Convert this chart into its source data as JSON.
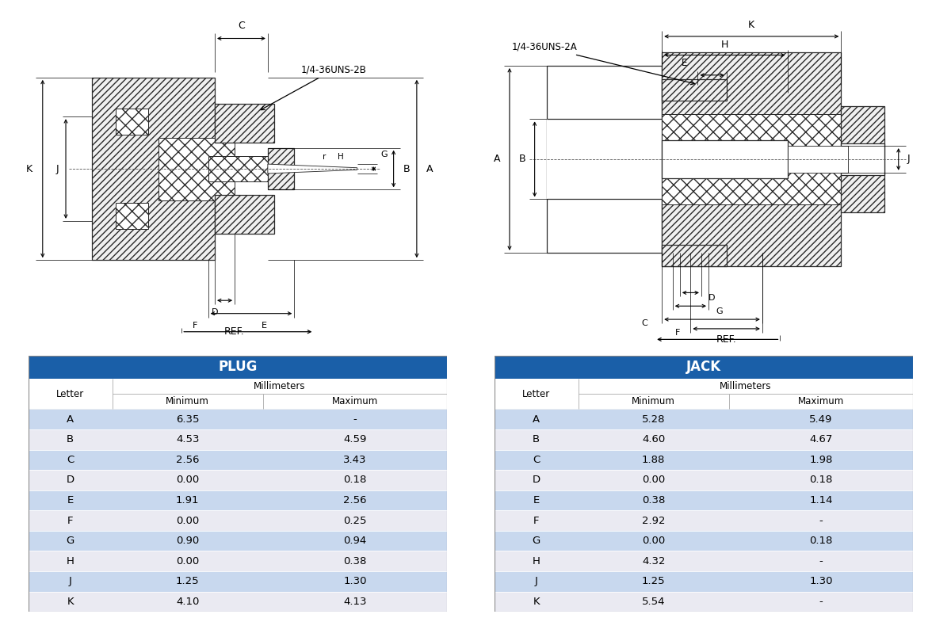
{
  "plug_table": {
    "title": "PLUG",
    "header_color": "#1a5fa8",
    "header_text_color": "#ffffff",
    "rows": [
      [
        "A",
        "6.35",
        "-"
      ],
      [
        "B",
        "4.53",
        "4.59"
      ],
      [
        "C",
        "2.56",
        "3.43"
      ],
      [
        "D",
        "0.00",
        "0.18"
      ],
      [
        "E",
        "1.91",
        "2.56"
      ],
      [
        "F",
        "0.00",
        "0.25"
      ],
      [
        "G",
        "0.90",
        "0.94"
      ],
      [
        "H",
        "0.00",
        "0.38"
      ],
      [
        "J",
        "1.25",
        "1.30"
      ],
      [
        "K",
        "4.10",
        "4.13"
      ]
    ],
    "even_row_color": "#c8d8ee",
    "odd_row_color": "#eaeaf2"
  },
  "jack_table": {
    "title": "JACK",
    "header_color": "#1a5fa8",
    "header_text_color": "#ffffff",
    "rows": [
      [
        "A",
        "5.28",
        "5.49"
      ],
      [
        "B",
        "4.60",
        "4.67"
      ],
      [
        "C",
        "1.88",
        "1.98"
      ],
      [
        "D",
        "0.00",
        "0.18"
      ],
      [
        "E",
        "0.38",
        "1.14"
      ],
      [
        "F",
        "2.92",
        "-"
      ],
      [
        "G",
        "0.00",
        "0.18"
      ],
      [
        "H",
        "4.32",
        "-"
      ],
      [
        "J",
        "1.25",
        "1.30"
      ],
      [
        "K",
        "5.54",
        "-"
      ]
    ],
    "even_row_color": "#c8d8ee",
    "odd_row_color": "#eaeaf2"
  },
  "bg_color": "#ffffff"
}
